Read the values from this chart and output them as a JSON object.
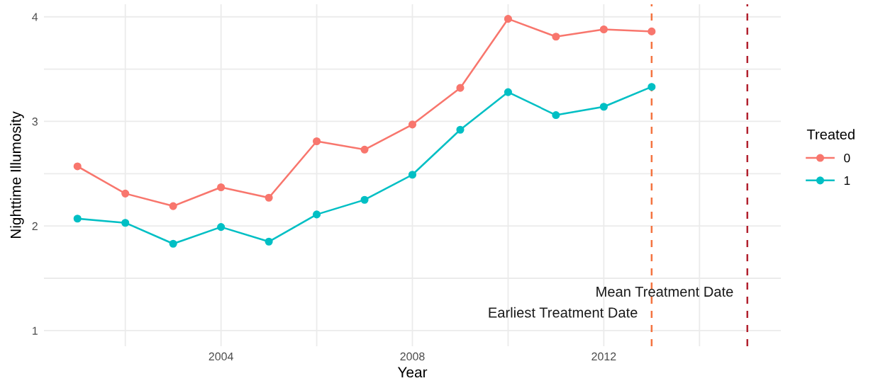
{
  "chart_data": {
    "type": "line",
    "xlabel": "Year",
    "ylabel": "Nighttime Illumosity",
    "legend_title": "Treated",
    "x": [
      2001,
      2002,
      2003,
      2004,
      2005,
      2006,
      2007,
      2008,
      2009,
      2010,
      2011,
      2012,
      2013
    ],
    "series": [
      {
        "name": "0",
        "color": "#f8766d",
        "values": [
          2.57,
          2.31,
          2.19,
          2.37,
          2.27,
          2.81,
          2.73,
          2.97,
          3.32,
          3.98,
          3.81,
          3.88,
          3.86
        ]
      },
      {
        "name": "1",
        "color": "#00bfc4",
        "values": [
          2.07,
          2.03,
          1.83,
          1.99,
          1.85,
          2.11,
          2.25,
          2.49,
          2.92,
          3.28,
          3.06,
          3.14,
          3.33
        ]
      }
    ],
    "xlim": [
      2000.3,
      2015.7
    ],
    "ylim": [
      0.85,
      4.12
    ],
    "xticks": [
      {
        "value": 2002,
        "label": null
      },
      2004,
      {
        "value": 2006,
        "label": null
      },
      2008,
      {
        "value": 2010,
        "label": null
      },
      2012,
      {
        "value": 2014,
        "label": null
      }
    ],
    "yticks": [
      1,
      {
        "value": 1.5,
        "label": null
      },
      2,
      {
        "value": 2.5,
        "label": null
      },
      3,
      {
        "value": 3.5,
        "label": null
      },
      4
    ],
    "ref_lines": [
      {
        "axis": "x",
        "value": 2013,
        "color": "#f4733f",
        "line_style": "dashed"
      },
      {
        "axis": "x",
        "value": 2015,
        "color": "#b2222f",
        "line_style": "dashed"
      }
    ],
    "annotations": [
      {
        "text": "Earliest Treatment Date",
        "x": 2013,
        "y": 1.16
      },
      {
        "text": "Mean Treatment Date",
        "x": 2015,
        "y": 1.36
      }
    ],
    "grid": true,
    "legend": "right",
    "marker": "circle",
    "line_style": "solid"
  }
}
